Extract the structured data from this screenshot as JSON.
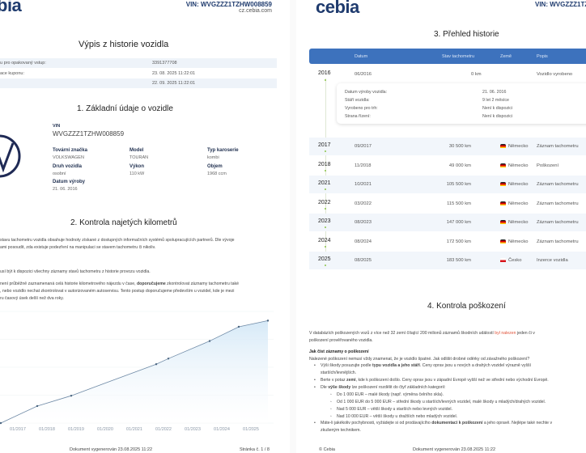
{
  "page1": {
    "logo": "bia",
    "vin_header": "VIN: WVGZZZ1TZHW008859",
    "site": "cz.cebia.com",
    "title": "Výpis z historie vozidla",
    "info_rows": [
      {
        "label": "u pro opakovaný vstup:",
        "value": "3391377708"
      },
      {
        "label": "ace kuponu:",
        "value": "23. 08. 2025 11:22:01"
      },
      {
        "label": "",
        "value": "22. 09. 2025 11:22:01"
      }
    ],
    "section1": {
      "title": "1. Základní údaje o vozidle",
      "vin_label": "VIN",
      "vin": "WVGZZZ1TZHW008859",
      "fields": [
        {
          "label": "Tovární značka",
          "value": "VOLKSWAGEN"
        },
        {
          "label": "Model",
          "value": "TOURAN"
        },
        {
          "label": "Typ karoserie",
          "value": "kombi"
        },
        {
          "label": "Druh vozidla",
          "value": "osobní"
        },
        {
          "label": "Výkon",
          "value": "110 kW"
        },
        {
          "label": "Objem",
          "value": "1968 ccm"
        },
        {
          "label": "Datum výroby",
          "value": "21. 06. 2016"
        }
      ]
    },
    "section2": {
      "title": "2. Kontrola najetých kilometrů",
      "p1a": "stavu tachometru vozidla obsahuje hodnoty získané z dostupných informačních systémů spolupracujících partnerů. Dle vývoje",
      "p1b": "ami posoudit, zda existuje podezření na manipulaci se stavem tachometru či nikoliv.",
      "p2": "usí být k dispozici všechny záznamy stavů tachometru z historie provozu vozidla.",
      "p3a_pre": " není průběžně zaznamenaná celá historie kilometrového nájezdu v čase, ",
      "p3a_bold": "doporučujeme",
      "p3a_post": " zkontrolovat záznamy tachometru také",
      "p3b": ", nebo vozidlo nechat zkontrolovat v autorizovaném autoservisu. Tento postup doporučujeme především u vozidel, kde je mezi",
      "p3c": "ru časový úsek delší než dva roky."
    },
    "footer": {
      "generated": "Dokument vygenerován 23.08.2025 11:22",
      "page": "Stránka č. 1 / 8"
    }
  },
  "chart_data": {
    "type": "area",
    "x_ticks": [
      "01/2017",
      "01/2018",
      "01/2019",
      "01/2020",
      "01/2021",
      "01/2022",
      "01/2023",
      "01/2024",
      "01/2025"
    ],
    "ylim": [
      0,
      200000
    ],
    "grid": true,
    "points": [
      {
        "x": "06/2016",
        "y": 0
      },
      {
        "x": "09/2017",
        "y": 30500
      },
      {
        "x": "11/2018",
        "y": 49000
      },
      {
        "x": "10/2021",
        "y": 105500
      },
      {
        "x": "03/2022",
        "y": 115500
      },
      {
        "x": "08/2023",
        "y": 147000
      },
      {
        "x": "08/2024",
        "y": 172500
      },
      {
        "x": "08/2025",
        "y": 183500
      }
    ],
    "colors": {
      "line": "#6f8aa6",
      "fill": "#d6e9f7"
    }
  },
  "page2": {
    "logo": "cebia",
    "vin_header": "VIN: WVGZZZ1TZH",
    "title": "3. Přehled historie",
    "columns": [
      "Datum",
      "Stav tachometru",
      "Země",
      "Popis"
    ],
    "first_row": {
      "year": "2016",
      "date": "06/2016",
      "km": "0 km",
      "desc": "Vozidlo vyrobeno"
    },
    "details": [
      {
        "label": "Datum výroby vozidla:",
        "value": "21. 06. 2016"
      },
      {
        "label": "Stáří vozidla:",
        "value": "9 let 2 měsíce"
      },
      {
        "label": "Vyrobeno pro trh:",
        "value": "Není k dispozici"
      },
      {
        "label": "Strana řízení:",
        "value": "Není k dispozici"
      }
    ],
    "rows": [
      {
        "year": "2017",
        "date": "09/2017",
        "km": "30 500 km",
        "country": "Německo",
        "flag": "de",
        "desc": "Záznam tachometru"
      },
      {
        "year": "2018",
        "date": "11/2018",
        "km": "49 000 km",
        "country": "Německo",
        "flag": "de",
        "desc": "Poškození"
      },
      {
        "year": "2021",
        "date": "10/2021",
        "km": "105 500 km",
        "country": "Německo",
        "flag": "de",
        "desc": "Záznam tachometru"
      },
      {
        "year": "2022",
        "date": "03/2022",
        "km": "115 500 km",
        "country": "Německo",
        "flag": "de",
        "desc": "Záznam tachometru"
      },
      {
        "year": "2023",
        "date": "08/2023",
        "km": "147 000 km",
        "country": "Německo",
        "flag": "de",
        "desc": "Záznam tachometru"
      },
      {
        "year": "2024",
        "date": "08/2024",
        "km": "172 500 km",
        "country": "Německo",
        "flag": "de",
        "desc": "Záznam tachometru"
      },
      {
        "year": "2025",
        "date": "08/2025",
        "km": "183 500 km",
        "country": "Česko",
        "flag": "cz",
        "desc": "Inzerce vozidla"
      }
    ],
    "section4": {
      "title": "4. Kontrola poškození",
      "p1_pre": "V databázích poškozených vozů z více než 32 zemí čítající 200 milionů záznamů škodních událostí ",
      "p1_red": "byl nalezen",
      "p1_post": " jeden či v",
      "p1b": "poškození prověřovaného vozidla.",
      "howto": "Jak číst záznamy o poškození",
      "intro": "Nalezené poškození nemusí vždy znamenat, že je vozidlo špatné. Jak odlišit drobné oděrky od závažného poškození?",
      "b1_pre": "Výši škody posuzujte podle ",
      "b1_bold": "typu vozidla a jeho stáří",
      "b1_post": ". Ceny oprav jsou u nových a drahých vozidel výrazně vyšší",
      "b1b": "starších/levnějších.",
      "b2_pre": "Berte v potaz ",
      "b2_bold": "zemi",
      "b2_post": ", kde k poškození došlo. Ceny oprav jsou v západní Evropě vyšší než ve střední nebo východní Evropě.",
      "b3_pre": "Dle ",
      "b3_bold": "výše škody",
      "b3_post": " lze poškození rozdělit do čtyř základních kategorií:",
      "sub": [
        "Do 1 000 EUR – malé škody (např. výměna čelního skla).",
        "Od 1 000 EUR do 5 000 EUR – střední škody u starších/levných vozidel, malé škody u mladých/drahých vozidel.",
        "Nad 5 000 EUR – větší škody u starších nebo levných vozidel.",
        "Nad 10 000 EUR – větší škody u dražších nebo mladých vozidel."
      ],
      "b4_pre": "Máte-li jakékoliv pochybnosti, vyžádejte si od prodávajícího ",
      "b4_bold": "dokumentaci k poškození",
      "b4_post": " a jeho opravě. Nejlépe také nechte v",
      "b4b": "zkušeným technikem."
    },
    "footer": {
      "copyright": "© Cebia",
      "generated": "Dokument vygenerován 23.08.2025 11:22"
    }
  },
  "colors": {
    "brand": "#1f3b6e",
    "table_header": "#3d72bd",
    "alert": "#e0533a",
    "timeline": "#8bc34a"
  }
}
